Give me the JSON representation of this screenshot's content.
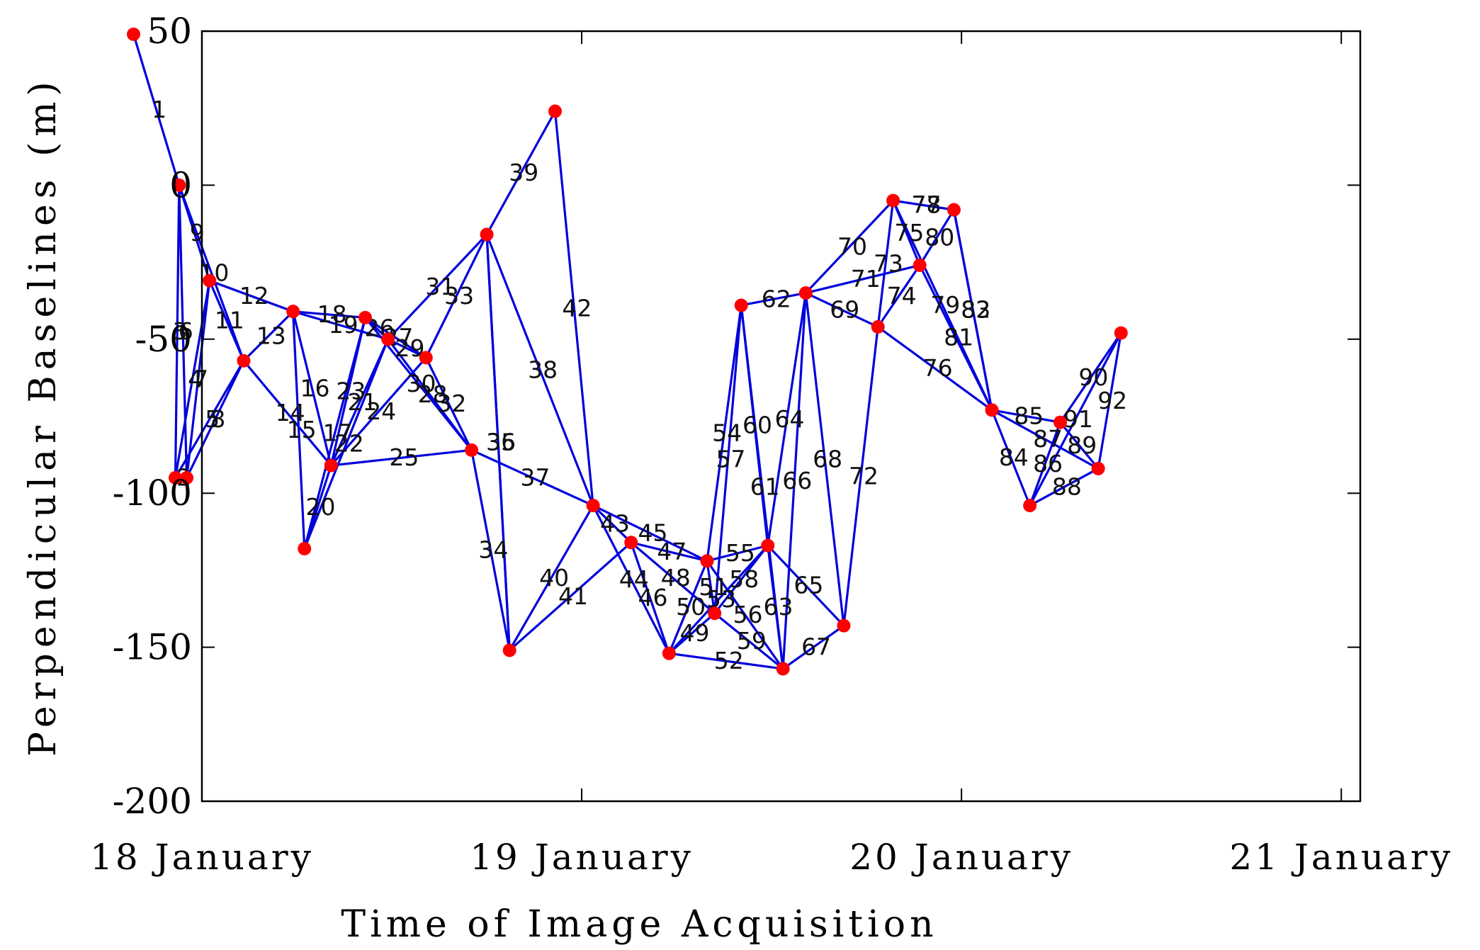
{
  "chart_data": {
    "type": "line",
    "title": "",
    "xlabel": "Time of Image Acquisition",
    "ylabel": "Perpendicular Baselines (m)",
    "ylim": [
      -200,
      50
    ],
    "yticks": [
      50,
      0,
      -50,
      -100,
      -150,
      -200
    ],
    "xlim": [
      0,
      3.05
    ],
    "xticks": [
      {
        "value": 0,
        "label": "18 January"
      },
      {
        "value": 1,
        "label": "19 January"
      },
      {
        "value": 2,
        "label": "20 January"
      },
      {
        "value": 3,
        "label": "21 January"
      }
    ],
    "grid": false,
    "colors": {
      "edge": "#0000dd",
      "node": "#ff0000",
      "axis": "#000000"
    },
    "nodes": [
      {
        "id": "n0",
        "x": -0.18,
        "y": 49
      },
      {
        "id": "n1",
        "x": -0.07,
        "y": -95
      },
      {
        "id": "n2",
        "x": -0.04,
        "y": -95
      },
      {
        "id": "n3",
        "x": -0.06,
        "y": 0
      },
      {
        "id": "n4",
        "x": 0.02,
        "y": -31
      },
      {
        "id": "n5",
        "x": 0.11,
        "y": -57
      },
      {
        "id": "n6",
        "x": 0.24,
        "y": -41
      },
      {
        "id": "n7",
        "x": 0.27,
        "y": -118
      },
      {
        "id": "n8",
        "x": 0.34,
        "y": -91
      },
      {
        "id": "n9",
        "x": 0.43,
        "y": -43
      },
      {
        "id": "n10",
        "x": 0.49,
        "y": -50
      },
      {
        "id": "n11",
        "x": 0.59,
        "y": -56
      },
      {
        "id": "n12",
        "x": 0.71,
        "y": -86
      },
      {
        "id": "n13",
        "x": 0.75,
        "y": -16
      },
      {
        "id": "n14",
        "x": 0.81,
        "y": -151
      },
      {
        "id": "n15",
        "x": 0.93,
        "y": 24
      },
      {
        "id": "n16",
        "x": 1.03,
        "y": -104
      },
      {
        "id": "n17",
        "x": 1.13,
        "y": -116
      },
      {
        "id": "n18",
        "x": 1.23,
        "y": -152
      },
      {
        "id": "n19",
        "x": 1.33,
        "y": -122
      },
      {
        "id": "n20",
        "x": 1.35,
        "y": -139
      },
      {
        "id": "n21",
        "x": 1.42,
        "y": -39
      },
      {
        "id": "n22",
        "x": 1.49,
        "y": -117
      },
      {
        "id": "n23",
        "x": 1.53,
        "y": -157
      },
      {
        "id": "n24",
        "x": 1.59,
        "y": -35
      },
      {
        "id": "n25",
        "x": 1.69,
        "y": -143
      },
      {
        "id": "n26",
        "x": 1.78,
        "y": -46
      },
      {
        "id": "n27",
        "x": 1.82,
        "y": -5
      },
      {
        "id": "n28",
        "x": 1.89,
        "y": -26
      },
      {
        "id": "n29",
        "x": 1.98,
        "y": -8
      },
      {
        "id": "n30",
        "x": 2.08,
        "y": -73
      },
      {
        "id": "n31",
        "x": 2.18,
        "y": -104
      },
      {
        "id": "n32",
        "x": 2.26,
        "y": -77
      },
      {
        "id": "n33",
        "x": 2.36,
        "y": -92
      },
      {
        "id": "n34",
        "x": 2.42,
        "y": -48
      }
    ],
    "edges": [
      {
        "label": "1",
        "from": "n0",
        "to": "n3"
      },
      {
        "label": "2",
        "from": "n1",
        "to": "n2"
      },
      {
        "label": "3",
        "from": "n1",
        "to": "n3"
      },
      {
        "label": "4",
        "from": "n1",
        "to": "n4"
      },
      {
        "label": "5",
        "from": "n1",
        "to": "n5"
      },
      {
        "label": "6",
        "from": "n2",
        "to": "n3"
      },
      {
        "label": "7",
        "from": "n2",
        "to": "n4"
      },
      {
        "label": "8",
        "from": "n2",
        "to": "n5"
      },
      {
        "label": "9",
        "from": "n3",
        "to": "n4"
      },
      {
        "label": "10",
        "from": "n3",
        "to": "n5"
      },
      {
        "label": "11",
        "from": "n4",
        "to": "n5"
      },
      {
        "label": "12",
        "from": "n4",
        "to": "n6"
      },
      {
        "label": "13",
        "from": "n5",
        "to": "n6"
      },
      {
        "label": "14",
        "from": "n5",
        "to": "n8"
      },
      {
        "label": "15",
        "from": "n6",
        "to": "n7"
      },
      {
        "label": "16",
        "from": "n6",
        "to": "n8"
      },
      {
        "label": "17",
        "from": "n7",
        "to": "n9"
      },
      {
        "label": "18",
        "from": "n6",
        "to": "n9"
      },
      {
        "label": "19",
        "from": "n6",
        "to": "n10"
      },
      {
        "label": "20",
        "from": "n7",
        "to": "n8"
      },
      {
        "label": "21",
        "from": "n8",
        "to": "n10"
      },
      {
        "label": "22",
        "from": "n7",
        "to": "n10"
      },
      {
        "label": "23",
        "from": "n8",
        "to": "n9"
      },
      {
        "label": "24",
        "from": "n8",
        "to": "n11"
      },
      {
        "label": "25",
        "from": "n8",
        "to": "n12"
      },
      {
        "label": "26",
        "from": "n9",
        "to": "n10"
      },
      {
        "label": "27",
        "from": "n9",
        "to": "n11"
      },
      {
        "label": "28",
        "from": "n10",
        "to": "n12"
      },
      {
        "label": "29",
        "from": "n10",
        "to": "n11"
      },
      {
        "label": "30",
        "from": "n9",
        "to": "n12"
      },
      {
        "label": "31",
        "from": "n10",
        "to": "n13"
      },
      {
        "label": "32",
        "from": "n11",
        "to": "n12"
      },
      {
        "label": "33",
        "from": "n11",
        "to": "n13"
      },
      {
        "label": "34",
        "from": "n12",
        "to": "n14"
      },
      {
        "label": "35",
        "from": "n13",
        "to": "n14"
      },
      {
        "label": "36",
        "from": "n13",
        "to": "n14"
      },
      {
        "label": "37",
        "from": "n12",
        "to": "n16"
      },
      {
        "label": "38",
        "from": "n13",
        "to": "n16"
      },
      {
        "label": "39",
        "from": "n13",
        "to": "n15"
      },
      {
        "label": "40",
        "from": "n14",
        "to": "n16"
      },
      {
        "label": "41",
        "from": "n14",
        "to": "n17"
      },
      {
        "label": "42",
        "from": "n15",
        "to": "n16"
      },
      {
        "label": "43",
        "from": "n16",
        "to": "n17"
      },
      {
        "label": "44",
        "from": "n16",
        "to": "n18"
      },
      {
        "label": "45",
        "from": "n16",
        "to": "n19"
      },
      {
        "label": "46",
        "from": "n17",
        "to": "n18"
      },
      {
        "label": "47",
        "from": "n17",
        "to": "n19"
      },
      {
        "label": "48",
        "from": "n17",
        "to": "n20"
      },
      {
        "label": "49",
        "from": "n18",
        "to": "n20"
      },
      {
        "label": "50",
        "from": "n18",
        "to": "n19"
      },
      {
        "label": "51",
        "from": "n19",
        "to": "n20"
      },
      {
        "label": "52",
        "from": "n18",
        "to": "n23"
      },
      {
        "label": "53",
        "from": "n18",
        "to": "n22"
      },
      {
        "label": "54",
        "from": "n19",
        "to": "n21"
      },
      {
        "label": "55",
        "from": "n19",
        "to": "n22"
      },
      {
        "label": "56",
        "from": "n19",
        "to": "n23"
      },
      {
        "label": "57",
        "from": "n20",
        "to": "n21"
      },
      {
        "label": "58",
        "from": "n20",
        "to": "n22"
      },
      {
        "label": "59",
        "from": "n20",
        "to": "n23"
      },
      {
        "label": "60",
        "from": "n21",
        "to": "n22"
      },
      {
        "label": "61",
        "from": "n21",
        "to": "n23"
      },
      {
        "label": "62",
        "from": "n21",
        "to": "n24"
      },
      {
        "label": "63",
        "from": "n22",
        "to": "n23"
      },
      {
        "label": "64",
        "from": "n22",
        "to": "n24"
      },
      {
        "label": "65",
        "from": "n22",
        "to": "n25"
      },
      {
        "label": "66",
        "from": "n23",
        "to": "n24"
      },
      {
        "label": "67",
        "from": "n23",
        "to": "n25"
      },
      {
        "label": "68",
        "from": "n24",
        "to": "n25"
      },
      {
        "label": "69",
        "from": "n24",
        "to": "n26"
      },
      {
        "label": "70",
        "from": "n24",
        "to": "n27"
      },
      {
        "label": "71",
        "from": "n24",
        "to": "n28"
      },
      {
        "label": "72",
        "from": "n25",
        "to": "n26"
      },
      {
        "label": "73",
        "from": "n26",
        "to": "n27"
      },
      {
        "label": "74",
        "from": "n26",
        "to": "n28"
      },
      {
        "label": "75",
        "from": "n27",
        "to": "n28"
      },
      {
        "label": "76",
        "from": "n26",
        "to": "n30"
      },
      {
        "label": "77",
        "from": "n27",
        "to": "n29"
      },
      {
        "label": "78",
        "from": "n27",
        "to": "n29"
      },
      {
        "label": "79",
        "from": "n27",
        "to": "n30"
      },
      {
        "label": "80",
        "from": "n28",
        "to": "n29"
      },
      {
        "label": "81",
        "from": "n28",
        "to": "n30"
      },
      {
        "label": "82",
        "from": "n29",
        "to": "n30"
      },
      {
        "label": "83",
        "from": "n29",
        "to": "n30"
      },
      {
        "label": "84",
        "from": "n30",
        "to": "n31"
      },
      {
        "label": "85",
        "from": "n30",
        "to": "n32"
      },
      {
        "label": "86",
        "from": "n31",
        "to": "n32"
      },
      {
        "label": "87",
        "from": "n30",
        "to": "n33"
      },
      {
        "label": "88",
        "from": "n31",
        "to": "n33"
      },
      {
        "label": "89",
        "from": "n32",
        "to": "n33"
      },
      {
        "label": "90",
        "from": "n32",
        "to": "n34"
      },
      {
        "label": "91",
        "from": "n31",
        "to": "n34"
      },
      {
        "label": "92",
        "from": "n33",
        "to": "n34"
      }
    ]
  }
}
